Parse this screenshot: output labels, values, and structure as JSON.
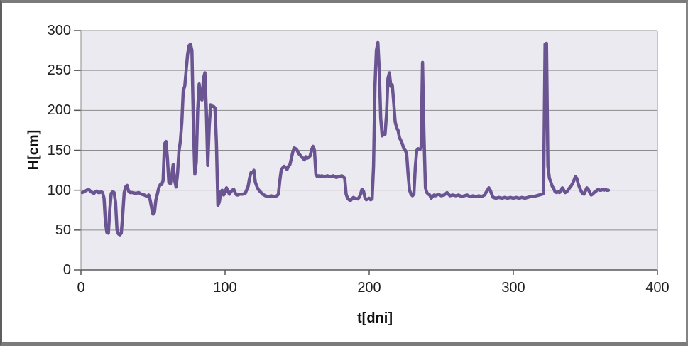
{
  "chart_data": {
    "type": "line",
    "title": "",
    "xlabel": "t[dni]",
    "ylabel": "H[cm]",
    "xlim": [
      0,
      400
    ],
    "ylim": [
      0,
      300
    ],
    "x_ticks": [
      0,
      100,
      200,
      300,
      400
    ],
    "y_ticks": [
      0,
      50,
      100,
      150,
      200,
      250,
      300
    ],
    "grid": true,
    "legend": "none",
    "colors": {
      "line": "#6A5491",
      "plot_background": "#ECEAF1",
      "gridline": "#8C8C8C",
      "axis_line": "#595959",
      "frame_border": "#7b7b7b",
      "label_text": "#1f1f1f"
    },
    "series": [
      {
        "name": "H",
        "points": [
          [
            1,
            97
          ],
          [
            2,
            98
          ],
          [
            3,
            99
          ],
          [
            4,
            100
          ],
          [
            5,
            101
          ],
          [
            6,
            100
          ],
          [
            7,
            98
          ],
          [
            8,
            97
          ],
          [
            9,
            96
          ],
          [
            10,
            98
          ],
          [
            11,
            99
          ],
          [
            12,
            97
          ],
          [
            13,
            97
          ],
          [
            14,
            98
          ],
          [
            15,
            97
          ],
          [
            16,
            90
          ],
          [
            17,
            60
          ],
          [
            18,
            47
          ],
          [
            19,
            46
          ],
          [
            20,
            75
          ],
          [
            21,
            96
          ],
          [
            22,
            98
          ],
          [
            23,
            97
          ],
          [
            24,
            85
          ],
          [
            25,
            50
          ],
          [
            26,
            45
          ],
          [
            27,
            44
          ],
          [
            28,
            46
          ],
          [
            29,
            70
          ],
          [
            30,
            97
          ],
          [
            31,
            104
          ],
          [
            32,
            106
          ],
          [
            33,
            99
          ],
          [
            34,
            97
          ],
          [
            36,
            97
          ],
          [
            38,
            96
          ],
          [
            40,
            97
          ],
          [
            42,
            95
          ],
          [
            44,
            94
          ],
          [
            46,
            92
          ],
          [
            47,
            94
          ],
          [
            48,
            88
          ],
          [
            49,
            78
          ],
          [
            50,
            70
          ],
          [
            51,
            72
          ],
          [
            52,
            88
          ],
          [
            53,
            95
          ],
          [
            54,
            103
          ],
          [
            55,
            107
          ],
          [
            56,
            107
          ],
          [
            57,
            112
          ],
          [
            58,
            158
          ],
          [
            59,
            161
          ],
          [
            60,
            140
          ],
          [
            61,
            110
          ],
          [
            62,
            108
          ],
          [
            63,
            118
          ],
          [
            64,
            132
          ],
          [
            65,
            112
          ],
          [
            66,
            104
          ],
          [
            67,
            120
          ],
          [
            68,
            148
          ],
          [
            69,
            162
          ],
          [
            70,
            185
          ],
          [
            71,
            225
          ],
          [
            72,
            230
          ],
          [
            73,
            250
          ],
          [
            74,
            270
          ],
          [
            75,
            281
          ],
          [
            76,
            283
          ],
          [
            77,
            275
          ],
          [
            78,
            185
          ],
          [
            79,
            120
          ],
          [
            80,
            135
          ],
          [
            81,
            200
          ],
          [
            82,
            233
          ],
          [
            83,
            215
          ],
          [
            84,
            213
          ],
          [
            85,
            240
          ],
          [
            86,
            247
          ],
          [
            87,
            200
          ],
          [
            88,
            131
          ],
          [
            89,
            180
          ],
          [
            90,
            207
          ],
          [
            91,
            205
          ],
          [
            92,
            205
          ],
          [
            93,
            203
          ],
          [
            94,
            160
          ],
          [
            95,
            81
          ],
          [
            96,
            85
          ],
          [
            97,
            98
          ],
          [
            98,
            100
          ],
          [
            99,
            94
          ],
          [
            100,
            97
          ],
          [
            101,
            103
          ],
          [
            102,
            99
          ],
          [
            103,
            95
          ],
          [
            104,
            98
          ],
          [
            105,
            100
          ],
          [
            106,
            101
          ],
          [
            107,
            97
          ],
          [
            108,
            94
          ],
          [
            109,
            94
          ],
          [
            110,
            95
          ],
          [
            112,
            95
          ],
          [
            114,
            96
          ],
          [
            116,
            105
          ],
          [
            117,
            115
          ],
          [
            118,
            122
          ],
          [
            119,
            122
          ],
          [
            120,
            125
          ],
          [
            121,
            110
          ],
          [
            122,
            105
          ],
          [
            123,
            101
          ],
          [
            124,
            99
          ],
          [
            125,
            97
          ],
          [
            126,
            95
          ],
          [
            127,
            94
          ],
          [
            128,
            93
          ],
          [
            130,
            92
          ],
          [
            132,
            93
          ],
          [
            134,
            92
          ],
          [
            136,
            93
          ],
          [
            137,
            95
          ],
          [
            138,
            112
          ],
          [
            139,
            126
          ],
          [
            140,
            128
          ],
          [
            141,
            130
          ],
          [
            142,
            128
          ],
          [
            143,
            126
          ],
          [
            144,
            130
          ],
          [
            145,
            132
          ],
          [
            146,
            140
          ],
          [
            147,
            148
          ],
          [
            148,
            153
          ],
          [
            149,
            152
          ],
          [
            150,
            150
          ],
          [
            151,
            146
          ],
          [
            152,
            144
          ],
          [
            153,
            142
          ],
          [
            154,
            140
          ],
          [
            155,
            138
          ],
          [
            156,
            142
          ],
          [
            157,
            140
          ],
          [
            158,
            141
          ],
          [
            159,
            143
          ],
          [
            160,
            150
          ],
          [
            161,
            155
          ],
          [
            162,
            150
          ],
          [
            163,
            120
          ],
          [
            164,
            117
          ],
          [
            165,
            118
          ],
          [
            166,
            117
          ],
          [
            167,
            118
          ],
          [
            169,
            117
          ],
          [
            171,
            118
          ],
          [
            173,
            117
          ],
          [
            175,
            118
          ],
          [
            177,
            116
          ],
          [
            179,
            117
          ],
          [
            181,
            118
          ],
          [
            183,
            115
          ],
          [
            184,
            95
          ],
          [
            185,
            90
          ],
          [
            186,
            88
          ],
          [
            187,
            87
          ],
          [
            188,
            89
          ],
          [
            189,
            91
          ],
          [
            190,
            90
          ],
          [
            192,
            89
          ],
          [
            193,
            91
          ],
          [
            194,
            95
          ],
          [
            195,
            101
          ],
          [
            196,
            99
          ],
          [
            197,
            91
          ],
          [
            198,
            88
          ],
          [
            199,
            89
          ],
          [
            200,
            90
          ],
          [
            201,
            88
          ],
          [
            202,
            89
          ],
          [
            203,
            130
          ],
          [
            204,
            230
          ],
          [
            205,
            275
          ],
          [
            206,
            285
          ],
          [
            207,
            250
          ],
          [
            208,
            190
          ],
          [
            209,
            168
          ],
          [
            210,
            172
          ],
          [
            211,
            170
          ],
          [
            212,
            195
          ],
          [
            213,
            240
          ],
          [
            214,
            247
          ],
          [
            215,
            230
          ],
          [
            216,
            232
          ],
          [
            217,
            210
          ],
          [
            218,
            186
          ],
          [
            219,
            178
          ],
          [
            220,
            175
          ],
          [
            221,
            166
          ],
          [
            222,
            162
          ],
          [
            223,
            158
          ],
          [
            224,
            152
          ],
          [
            225,
            150
          ],
          [
            226,
            145
          ],
          [
            227,
            120
          ],
          [
            228,
            100
          ],
          [
            229,
            95
          ],
          [
            230,
            93
          ],
          [
            231,
            95
          ],
          [
            232,
            130
          ],
          [
            233,
            150
          ],
          [
            234,
            152
          ],
          [
            235,
            151
          ],
          [
            236,
            153
          ],
          [
            237,
            260
          ],
          [
            238,
            170
          ],
          [
            239,
            103
          ],
          [
            240,
            97
          ],
          [
            241,
            95
          ],
          [
            242,
            94
          ],
          [
            243,
            90
          ],
          [
            244,
            92
          ],
          [
            245,
            94
          ],
          [
            246,
            93
          ],
          [
            248,
            95
          ],
          [
            250,
            93
          ],
          [
            252,
            94
          ],
          [
            254,
            97
          ],
          [
            255,
            95
          ],
          [
            256,
            93
          ],
          [
            258,
            94
          ],
          [
            260,
            93
          ],
          [
            262,
            94
          ],
          [
            264,
            92
          ],
          [
            266,
            93
          ],
          [
            268,
            94
          ],
          [
            270,
            92
          ],
          [
            272,
            93
          ],
          [
            274,
            92
          ],
          [
            276,
            93
          ],
          [
            278,
            92
          ],
          [
            280,
            94
          ],
          [
            282,
            100
          ],
          [
            283,
            103
          ],
          [
            284,
            100
          ],
          [
            285,
            95
          ],
          [
            286,
            91
          ],
          [
            288,
            90
          ],
          [
            290,
            91
          ],
          [
            292,
            90
          ],
          [
            294,
            91
          ],
          [
            296,
            90
          ],
          [
            298,
            91
          ],
          [
            300,
            90
          ],
          [
            302,
            91
          ],
          [
            304,
            90
          ],
          [
            306,
            91
          ],
          [
            308,
            90
          ],
          [
            310,
            91
          ],
          [
            312,
            92
          ],
          [
            314,
            92
          ],
          [
            316,
            93
          ],
          [
            318,
            94
          ],
          [
            320,
            95
          ],
          [
            321,
            96
          ],
          [
            322,
            283
          ],
          [
            323,
            284
          ],
          [
            324,
            130
          ],
          [
            325,
            115
          ],
          [
            326,
            110
          ],
          [
            327,
            105
          ],
          [
            328,
            102
          ],
          [
            329,
            98
          ],
          [
            330,
            97
          ],
          [
            331,
            98
          ],
          [
            332,
            97
          ],
          [
            333,
            99
          ],
          [
            334,
            103
          ],
          [
            335,
            100
          ],
          [
            336,
            97
          ],
          [
            337,
            98
          ],
          [
            338,
            100
          ],
          [
            339,
            103
          ],
          [
            340,
            105
          ],
          [
            341,
            108
          ],
          [
            342,
            112
          ],
          [
            343,
            117
          ],
          [
            344,
            115
          ],
          [
            345,
            108
          ],
          [
            346,
            103
          ],
          [
            347,
            99
          ],
          [
            348,
            96
          ],
          [
            349,
            95
          ],
          [
            350,
            99
          ],
          [
            351,
            103
          ],
          [
            352,
            101
          ],
          [
            353,
            97
          ],
          [
            354,
            94
          ],
          [
            355,
            95
          ],
          [
            356,
            97
          ],
          [
            357,
            98
          ],
          [
            358,
            100
          ],
          [
            359,
            101
          ],
          [
            360,
            100
          ],
          [
            361,
            100
          ],
          [
            362,
            101
          ],
          [
            363,
            100
          ],
          [
            364,
            101
          ],
          [
            365,
            100
          ],
          [
            366,
            100
          ]
        ]
      }
    ]
  }
}
